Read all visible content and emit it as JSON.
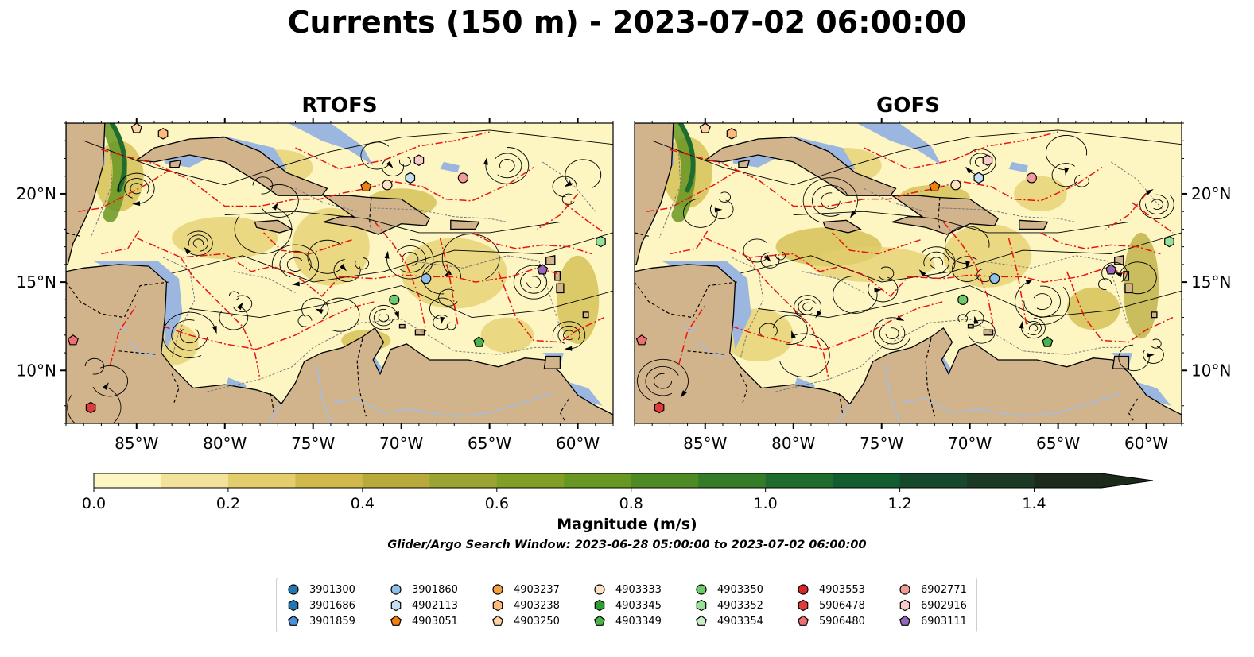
{
  "title": "Currents (150 m) - 2023-07-02 06:00:00",
  "panels": [
    {
      "id": "rtofs",
      "title": "RTOFS"
    },
    {
      "id": "gofs",
      "title": "GOFS"
    }
  ],
  "map": {
    "lon_range": [
      -89,
      -58
    ],
    "lat_range": [
      7,
      24
    ],
    "lon_ticks": [
      "85°W",
      "80°W",
      "75°W",
      "70°W",
      "65°W",
      "60°W"
    ],
    "lat_ticks": [
      "20°N",
      "15°N",
      "10°N"
    ],
    "land_color": "#d2b48c",
    "ocean_color": "#9bb7e0"
  },
  "colorbar": {
    "label": "Magnitude (m/s)",
    "ticks": [
      "0.0",
      "0.2",
      "0.4",
      "0.6",
      "0.8",
      "1.0",
      "1.2",
      "1.4"
    ],
    "range": [
      0,
      1.5
    ],
    "colors": [
      "#fdf6c3",
      "#f2e29a",
      "#e3cd6d",
      "#d0b94a",
      "#b8a93c",
      "#9ba432",
      "#829f25",
      "#699723",
      "#4e8b24",
      "#357c28",
      "#1f6c2f",
      "#125d30",
      "#16492b",
      "#1a3a24",
      "#1b2a1b"
    ]
  },
  "search_window": "Glider/Argo Search Window: 2023-06-28 05:00:00 to 2023-07-02 06:00:00",
  "floats": [
    {
      "id": "3901300",
      "color": "#1f77b4",
      "shape": "circle"
    },
    {
      "id": "3901686",
      "color": "#1f77b4",
      "shape": "hexagon"
    },
    {
      "id": "3901859",
      "color": "#4a90d9",
      "shape": "pentagon"
    },
    {
      "id": "3901860",
      "color": "#8fc0e8",
      "shape": "circle",
      "lon": -68.6,
      "lat": 15.2
    },
    {
      "id": "4902113",
      "color": "#c5def3",
      "shape": "hexagon",
      "lon": -69.5,
      "lat": 20.9
    },
    {
      "id": "4903051",
      "color": "#f07f0e",
      "shape": "pentagon",
      "lon": -72.0,
      "lat": 20.4
    },
    {
      "id": "4903237",
      "color": "#f4a040",
      "shape": "circle"
    },
    {
      "id": "4903238",
      "color": "#ffb97a",
      "shape": "hexagon",
      "lon": -83.5,
      "lat": 23.4
    },
    {
      "id": "4903250",
      "color": "#ffd3a6",
      "shape": "pentagon",
      "lon": -85.0,
      "lat": 23.7
    },
    {
      "id": "4903333",
      "color": "#fde3c4",
      "shape": "circle",
      "lon": -70.8,
      "lat": 20.5
    },
    {
      "id": "4903345",
      "color": "#2ca02c",
      "shape": "hexagon"
    },
    {
      "id": "4903349",
      "color": "#4cb34c",
      "shape": "pentagon",
      "lon": -65.6,
      "lat": 11.6
    },
    {
      "id": "4903350",
      "color": "#6ccc6c",
      "shape": "circle",
      "lon": -70.4,
      "lat": 14.0
    },
    {
      "id": "4903352",
      "color": "#98e098",
      "shape": "hexagon",
      "lon": -58.7,
      "lat": 17.3
    },
    {
      "id": "4903354",
      "color": "#c7f0c7",
      "shape": "pentagon"
    },
    {
      "id": "4903553",
      "color": "#d62728",
      "shape": "circle"
    },
    {
      "id": "5906478",
      "color": "#e03b3c",
      "shape": "hexagon",
      "lon": -87.6,
      "lat": 7.9
    },
    {
      "id": "5906480",
      "color": "#ee6f6f",
      "shape": "pentagon",
      "lon": -88.6,
      "lat": 11.7
    },
    {
      "id": "6902771",
      "color": "#f29b9b",
      "shape": "circle",
      "lon": -66.5,
      "lat": 20.9
    },
    {
      "id": "6902916",
      "color": "#f9c9c9",
      "shape": "hexagon",
      "lon": -69.0,
      "lat": 21.9
    },
    {
      "id": "6903111",
      "color": "#9467bd",
      "shape": "pentagon",
      "lon": -62.0,
      "lat": 15.7
    }
  ]
}
